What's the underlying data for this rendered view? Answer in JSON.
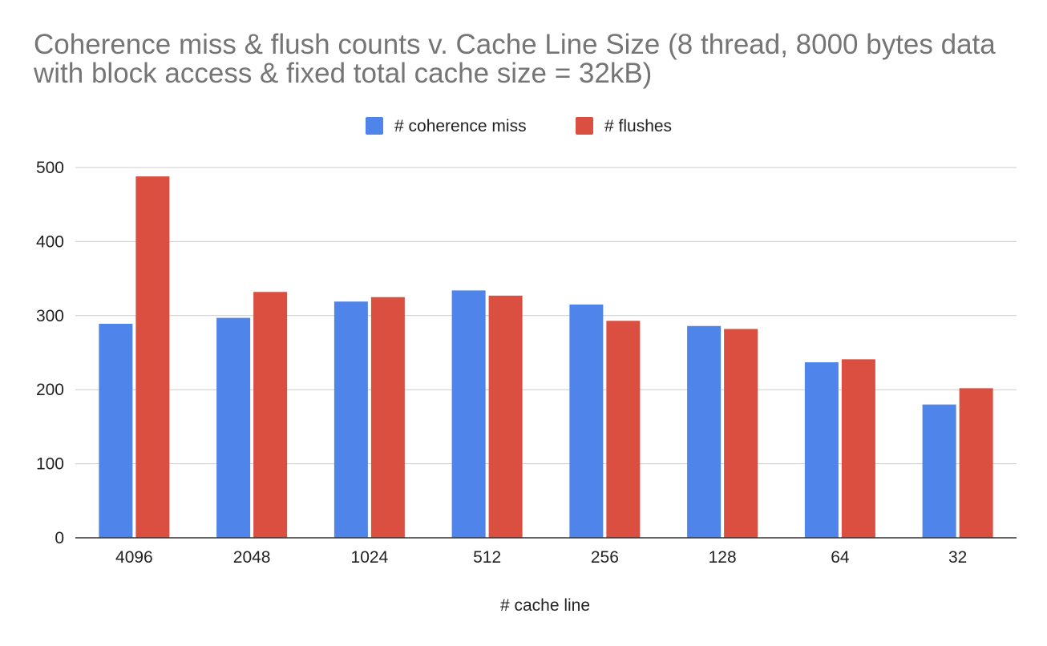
{
  "chart_data": {
    "type": "bar",
    "title": "Coherence miss & flush counts v. Cache Line Size (8 thread, 8000 bytes data with block access & fixed total cache size = 32kB)",
    "xlabel": "# cache line",
    "ylabel": "",
    "categories": [
      "4096",
      "2048",
      "1024",
      "512",
      "256",
      "128",
      "64",
      "32"
    ],
    "series": [
      {
        "name": "# coherence miss",
        "color": "#4f84ea",
        "values": [
          289,
          297,
          319,
          334,
          315,
          286,
          237,
          180
        ]
      },
      {
        "name": "# flushes",
        "color": "#da4f40",
        "values": [
          488,
          332,
          325,
          327,
          293,
          282,
          241,
          202
        ]
      }
    ],
    "ylim": [
      0,
      500
    ],
    "yticks": [
      0,
      100,
      200,
      300,
      400,
      500
    ],
    "grid": true,
    "legend_position": "top"
  }
}
